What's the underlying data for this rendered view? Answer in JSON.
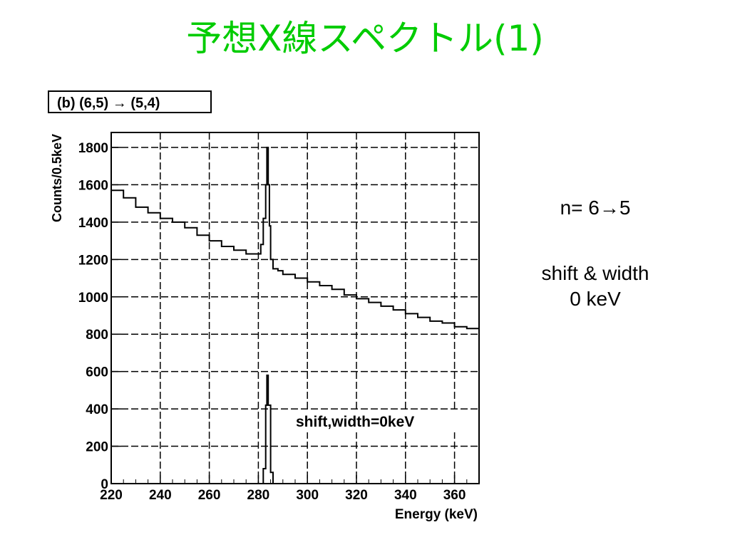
{
  "title": "予想X線スペクトル(1)",
  "side_text": {
    "transition": "n= 6→5",
    "shift_line1": "shift & width",
    "shift_line2": "0 keV"
  },
  "chart_data": {
    "type": "line",
    "panel_label": "(b) (6,5) → (5,4)",
    "xlabel": "Energy (keV)",
    "ylabel": "Counts/0.5keV",
    "xlim": [
      220,
      370
    ],
    "ylim": [
      0,
      1880
    ],
    "xticks": [
      220,
      240,
      260,
      280,
      300,
      320,
      340,
      360
    ],
    "yticks": [
      0,
      200,
      400,
      600,
      800,
      1000,
      1200,
      1400,
      1600,
      1800
    ],
    "grid": true,
    "annotation": "shift,width=0keV",
    "series": [
      {
        "kind": "spectrum",
        "x": [
          220,
          225,
          230,
          235,
          240,
          245,
          250,
          255,
          260,
          265,
          270,
          275,
          279,
          281,
          282,
          283,
          283.5,
          284,
          284.5,
          285,
          286,
          288,
          290,
          295,
          300,
          305,
          310,
          315,
          320,
          325,
          330,
          335,
          340,
          345,
          350,
          355,
          360,
          365,
          370
        ],
        "y": [
          1570,
          1530,
          1480,
          1450,
          1420,
          1400,
          1370,
          1330,
          1300,
          1270,
          1250,
          1230,
          1230,
          1280,
          1420,
          1600,
          1800,
          1600,
          1380,
          1200,
          1150,
          1140,
          1120,
          1100,
          1080,
          1060,
          1040,
          1010,
          990,
          970,
          950,
          930,
          910,
          890,
          870,
          860,
          840,
          830,
          810
        ]
      },
      {
        "kind": "peak",
        "x": [
          220,
          281,
          282,
          283,
          283.5,
          284,
          285,
          286,
          370
        ],
        "y": [
          0,
          0,
          80,
          420,
          580,
          420,
          60,
          0,
          0
        ]
      }
    ]
  }
}
